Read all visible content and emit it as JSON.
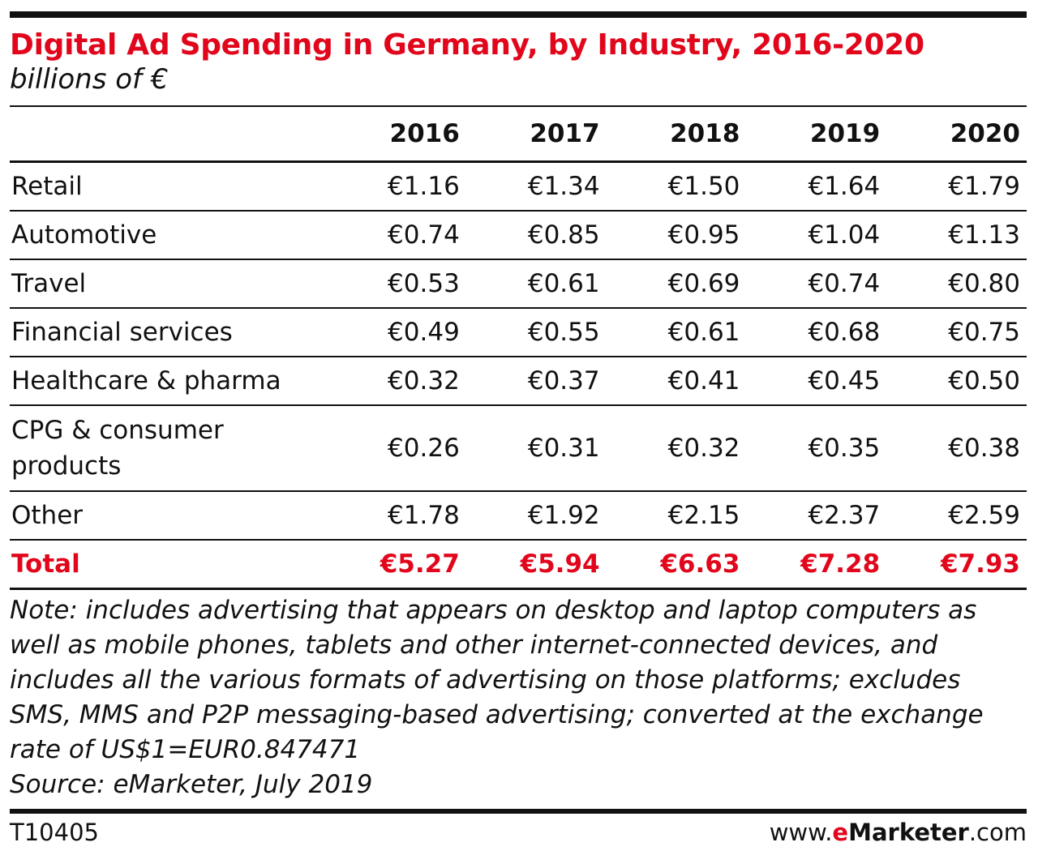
{
  "header": {
    "title": "Digital Ad Spending in Germany, by Industry, 2016-2020",
    "subtitle": "billions of €"
  },
  "chart_data": {
    "type": "table",
    "title": "Digital Ad Spending in Germany, by Industry, 2016-2020",
    "subtitle": "billions of €",
    "columns": [
      "2016",
      "2017",
      "2018",
      "2019",
      "2020"
    ],
    "rows": [
      {
        "label": "Retail",
        "values": [
          "€1.16",
          "€1.34",
          "€1.50",
          "€1.64",
          "€1.79"
        ]
      },
      {
        "label": "Automotive",
        "values": [
          "€0.74",
          "€0.85",
          "€0.95",
          "€1.04",
          "€1.13"
        ]
      },
      {
        "label": "Travel",
        "values": [
          "€0.53",
          "€0.61",
          "€0.69",
          "€0.74",
          "€0.80"
        ]
      },
      {
        "label": "Financial services",
        "values": [
          "€0.49",
          "€0.55",
          "€0.61",
          "€0.68",
          "€0.75"
        ]
      },
      {
        "label": "Healthcare & pharma",
        "values": [
          "€0.32",
          "€0.37",
          "€0.41",
          "€0.45",
          "€0.50"
        ]
      },
      {
        "label": "CPG & consumer products",
        "values": [
          "€0.26",
          "€0.31",
          "€0.32",
          "€0.35",
          "€0.38"
        ]
      },
      {
        "label": "Other",
        "values": [
          "€1.78",
          "€1.92",
          "€2.15",
          "€2.37",
          "€2.59"
        ]
      }
    ],
    "total": {
      "label": "Total",
      "values": [
        "€5.27",
        "€5.94",
        "€6.63",
        "€7.28",
        "€7.93"
      ]
    }
  },
  "footnote": {
    "note": "Note: includes advertising that appears on desktop and laptop computers as well as mobile phones, tablets and other internet-connected devices, and includes all the various formats of advertising on those platforms; excludes SMS, MMS and P2P messaging-based advertising; converted at the exchange rate of US$1=EUR0.847471",
    "source": "Source: eMarketer, July 2019"
  },
  "footer": {
    "chart_id": "T10405",
    "brand_prefix": "www.",
    "brand_e": "e",
    "brand_name": "Marketer",
    "brand_suffix": ".com"
  },
  "colors": {
    "accent": "#e1061b",
    "text": "#111111"
  }
}
